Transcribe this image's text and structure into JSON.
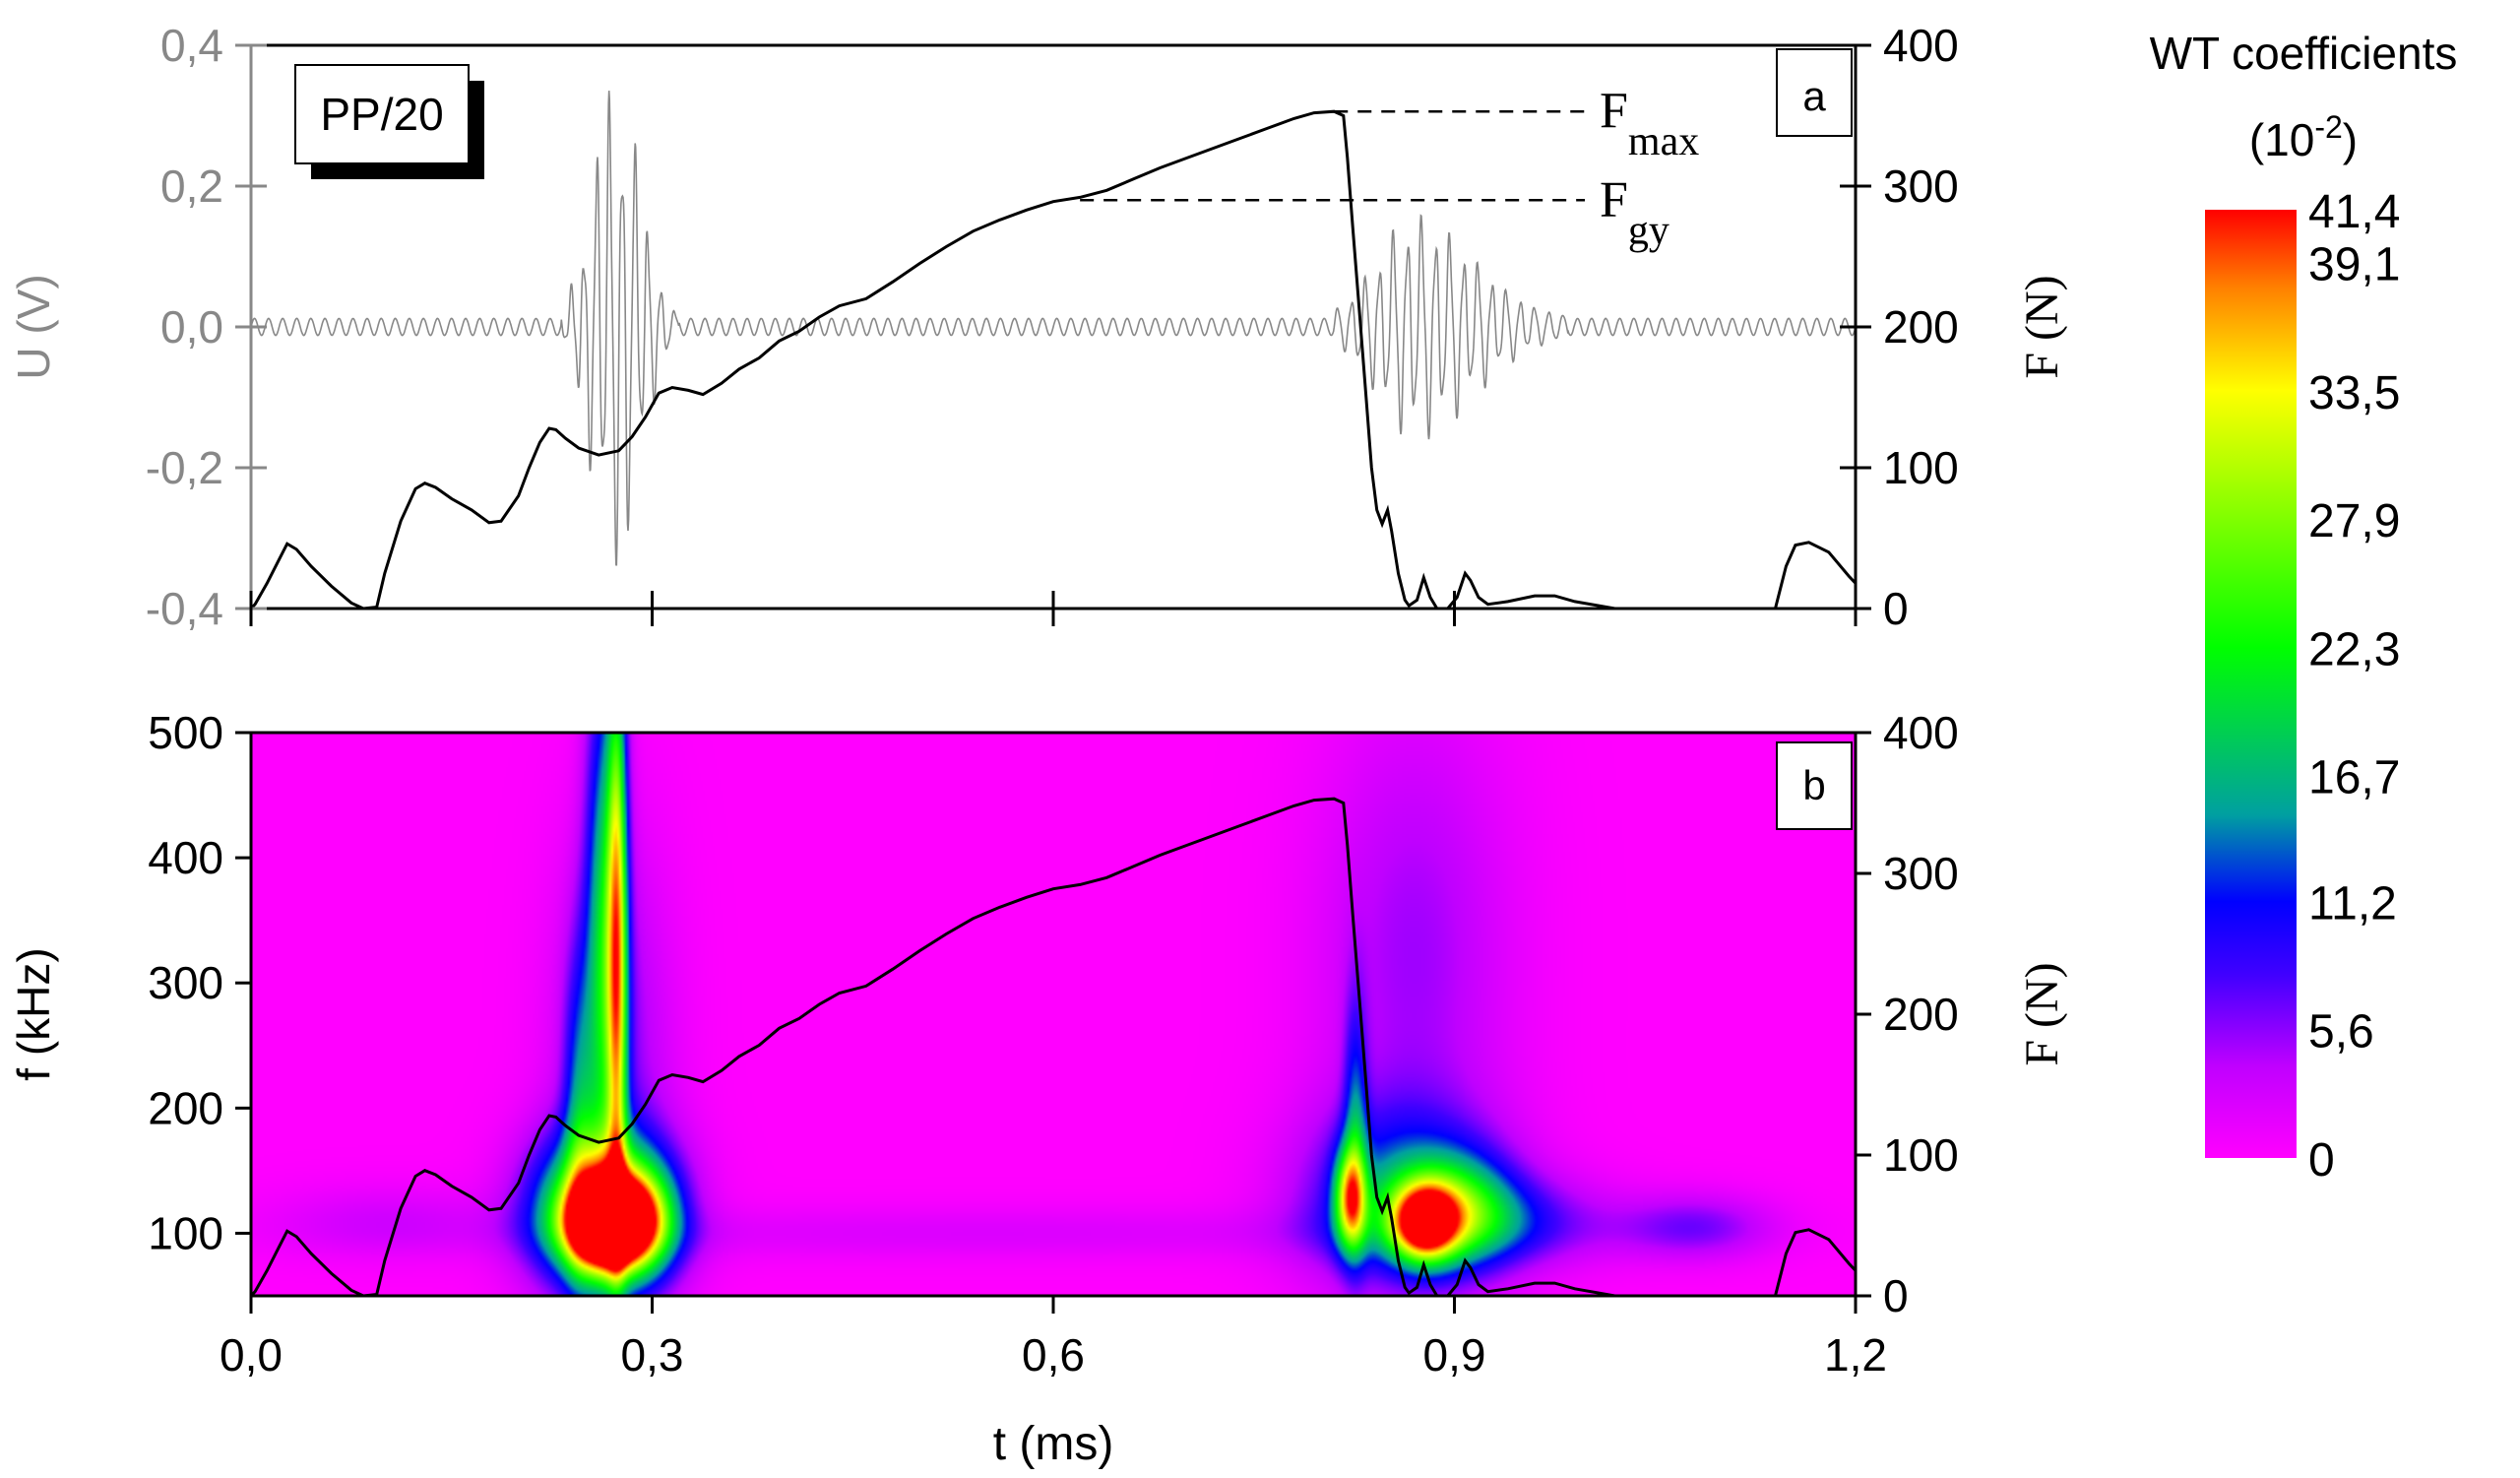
{
  "chart_data": [
    {
      "type": "line",
      "panel_label": "a",
      "sample_label": "PP/20",
      "x_domain": [
        0,
        1.2
      ],
      "left_axis": {
        "label": "U (V)",
        "ylim": [
          -0.4,
          0.4
        ],
        "ticks": [
          "0,4",
          "0,2",
          "0,0",
          "-0,2",
          "-0,4"
        ],
        "tick_values": [
          0.4,
          0.2,
          0.0,
          -0.2,
          -0.4
        ],
        "color": "#888888"
      },
      "right_axis": {
        "label": "F (N)",
        "ylim": [
          0,
          400
        ],
        "ticks": [
          "400",
          "300",
          "200",
          "100",
          "0"
        ],
        "tick_values": [
          400,
          300,
          200,
          100,
          0
        ]
      },
      "annotations": [
        {
          "base": "F",
          "sub": "max",
          "force": 353,
          "t_start": 0.81
        },
        {
          "base": "F",
          "sub": "gy",
          "force": 290,
          "t_start": 0.62
        }
      ],
      "series": [
        {
          "name": "U (V)",
          "color": "#888888",
          "axis": "left",
          "bursts": [
            {
              "t0": 0.232,
              "t1": 0.32,
              "peak_t": 0.272,
              "amp": 0.37,
              "freq_khz": 105
            },
            {
              "t0": 0.81,
              "t1": 0.985,
              "peak_t": 0.87,
              "amp": 0.16,
              "freq_khz": 95
            }
          ],
          "noise_amp": 0.012,
          "noise_freq_khz": 95
        },
        {
          "name": "F (N)",
          "color": "#000000",
          "axis": "right",
          "points": [
            [
              0,
              0
            ],
            [
              0.003,
              3
            ],
            [
              0.012,
              18
            ],
            [
              0.02,
              33
            ],
            [
              0.027,
              46
            ],
            [
              0.034,
              42
            ],
            [
              0.045,
              30
            ],
            [
              0.06,
              16
            ],
            [
              0.075,
              4
            ],
            [
              0.084,
              0
            ],
            [
              0.094,
              1
            ],
            [
              0.1,
              25
            ],
            [
              0.112,
              62
            ],
            [
              0.123,
              85
            ],
            [
              0.13,
              89
            ],
            [
              0.138,
              86
            ],
            [
              0.15,
              78
            ],
            [
              0.165,
              70
            ],
            [
              0.178,
              61
            ],
            [
              0.187,
              62
            ],
            [
              0.2,
              80
            ],
            [
              0.208,
              100
            ],
            [
              0.216,
              118
            ],
            [
              0.223,
              128
            ],
            [
              0.228,
              127
            ],
            [
              0.235,
              121
            ],
            [
              0.245,
              114
            ],
            [
              0.26,
              109
            ],
            [
              0.275,
              112
            ],
            [
              0.285,
              122
            ],
            [
              0.295,
              136
            ],
            [
              0.305,
              153
            ],
            [
              0.315,
              157
            ],
            [
              0.327,
              155
            ],
            [
              0.338,
              152
            ],
            [
              0.352,
              160
            ],
            [
              0.365,
              170
            ],
            [
              0.38,
              178
            ],
            [
              0.395,
              190
            ],
            [
              0.41,
              197
            ],
            [
              0.425,
              207
            ],
            [
              0.44,
              215
            ],
            [
              0.46,
              220
            ],
            [
              0.48,
              232
            ],
            [
              0.5,
              245
            ],
            [
              0.52,
              257
            ],
            [
              0.54,
              268
            ],
            [
              0.56,
              276
            ],
            [
              0.58,
              283
            ],
            [
              0.6,
              289
            ],
            [
              0.62,
              292
            ],
            [
              0.64,
              297
            ],
            [
              0.66,
              305
            ],
            [
              0.68,
              313
            ],
            [
              0.7,
              320
            ],
            [
              0.72,
              327
            ],
            [
              0.74,
              334
            ],
            [
              0.76,
              341
            ],
            [
              0.78,
              348
            ],
            [
              0.795,
              352
            ],
            [
              0.81,
              353
            ],
            [
              0.817,
              350
            ],
            [
              0.82,
              320
            ],
            [
              0.824,
              270
            ],
            [
              0.829,
              210
            ],
            [
              0.834,
              150
            ],
            [
              0.838,
              100
            ],
            [
              0.842,
              70
            ],
            [
              0.846,
              60
            ],
            [
              0.85,
              70
            ],
            [
              0.853,
              55
            ],
            [
              0.858,
              25
            ],
            [
              0.863,
              6
            ],
            [
              0.866,
              2
            ],
            [
              0.872,
              6
            ],
            [
              0.877,
              22
            ],
            [
              0.882,
              8
            ],
            [
              0.887,
              0
            ],
            [
              0.895,
              0
            ],
            [
              0.902,
              8
            ],
            [
              0.908,
              25
            ],
            [
              0.912,
              20
            ],
            [
              0.918,
              8
            ],
            [
              0.925,
              3
            ],
            [
              0.94,
              5
            ],
            [
              0.96,
              9
            ],
            [
              0.975,
              9
            ],
            [
              0.99,
              5
            ],
            [
              1.02,
              0
            ],
            [
              1.14,
              0
            ],
            [
              1.148,
              30
            ],
            [
              1.155,
              45
            ],
            [
              1.165,
              47
            ],
            [
              1.18,
              40
            ],
            [
              1.195,
              23
            ],
            [
              1.2,
              18
            ]
          ]
        }
      ]
    },
    {
      "type": "heatmap",
      "panel_label": "b",
      "x_domain": [
        0,
        1.2
      ],
      "xlabel": "t (ms)",
      "x_ticks": [
        "0,0",
        "0,3",
        "0,6",
        "0,9",
        "1,2"
      ],
      "x_tick_values": [
        0,
        0.3,
        0.6,
        0.9,
        1.2
      ],
      "left_axis": {
        "label": "f (kHz)",
        "ylim": [
          50,
          500
        ],
        "ticks": [
          "500",
          "400",
          "300",
          "200",
          "100"
        ],
        "tick_values": [
          500,
          400,
          300,
          200,
          100
        ]
      },
      "right_axis": {
        "label": "F (N)",
        "ylim": [
          0,
          400
        ],
        "ticks": [
          "400",
          "300",
          "200",
          "100",
          "0"
        ],
        "tick_values": [
          400,
          300,
          200,
          100,
          0
        ]
      },
      "blobs": [
        {
          "t": 0.267,
          "f": 108,
          "st": 0.02,
          "sf": 22,
          "a": 0.45
        },
        {
          "t": 0.262,
          "f": 118,
          "st": 0.035,
          "sf": 42,
          "a": 0.3
        },
        {
          "t": 0.29,
          "f": 110,
          "st": 0.02,
          "sf": 30,
          "a": 0.17
        },
        {
          "t": 0.245,
          "f": 190,
          "st": 0.008,
          "sf": 90,
          "a": 0.1
        },
        {
          "t": 0.265,
          "f": 340,
          "st": 0.01,
          "sf": 160,
          "a": 0.18
        },
        {
          "t": 0.274,
          "f": 330,
          "st": 0.005,
          "sf": 160,
          "a": 0.25
        },
        {
          "t": 0.27,
          "f": 240,
          "st": 0.03,
          "sf": 120,
          "a": 0.06
        },
        {
          "t": 0.822,
          "f": 128,
          "st": 0.008,
          "sf": 28,
          "a": 0.25
        },
        {
          "t": 0.826,
          "f": 190,
          "st": 0.006,
          "sf": 70,
          "a": 0.1
        },
        {
          "t": 0.878,
          "f": 108,
          "st": 0.016,
          "sf": 20,
          "a": 0.32
        },
        {
          "t": 0.9,
          "f": 120,
          "st": 0.03,
          "sf": 30,
          "a": 0.14
        },
        {
          "t": 0.86,
          "f": 130,
          "st": 0.05,
          "sf": 50,
          "a": 0.12
        },
        {
          "t": 0.92,
          "f": 110,
          "st": 0.06,
          "sf": 25,
          "a": 0.09
        },
        {
          "t": 0.87,
          "f": 320,
          "st": 0.05,
          "sf": 140,
          "a": 0.05
        },
        {
          "t": 1.08,
          "f": 105,
          "st": 0.04,
          "sf": 18,
          "a": 0.06
        },
        {
          "t": 0.1,
          "f": 110,
          "st": 0.06,
          "sf": 20,
          "a": 0.025
        },
        {
          "t": 0.55,
          "f": 100,
          "st": 0.3,
          "sf": 15,
          "a": 0.022
        }
      ],
      "force_series": "same as panel a F (N)"
    }
  ],
  "colorbar": {
    "title": "WT coefficients",
    "unit_base": "(10",
    "unit_exp": "-2",
    "unit_close": ")",
    "range": [
      0,
      41.4
    ],
    "labels": [
      "41,4",
      "39,1",
      "33,5",
      "27,9",
      "22,3",
      "16,7",
      "11,2",
      "5,6",
      "0"
    ],
    "label_values": [
      41.4,
      39.1,
      33.5,
      27.9,
      22.3,
      16.7,
      11.2,
      5.6,
      0
    ],
    "stops": [
      "#ff00ff",
      "#c000ff",
      "#4000ff",
      "#0000ff",
      "#00a0a0",
      "#00ff00",
      "#ffff00",
      "#ff8000",
      "#ff0000"
    ],
    "stop_values": [
      0,
      4,
      8,
      11.2,
      15,
      22.3,
      33.5,
      38,
      41.4
    ]
  }
}
